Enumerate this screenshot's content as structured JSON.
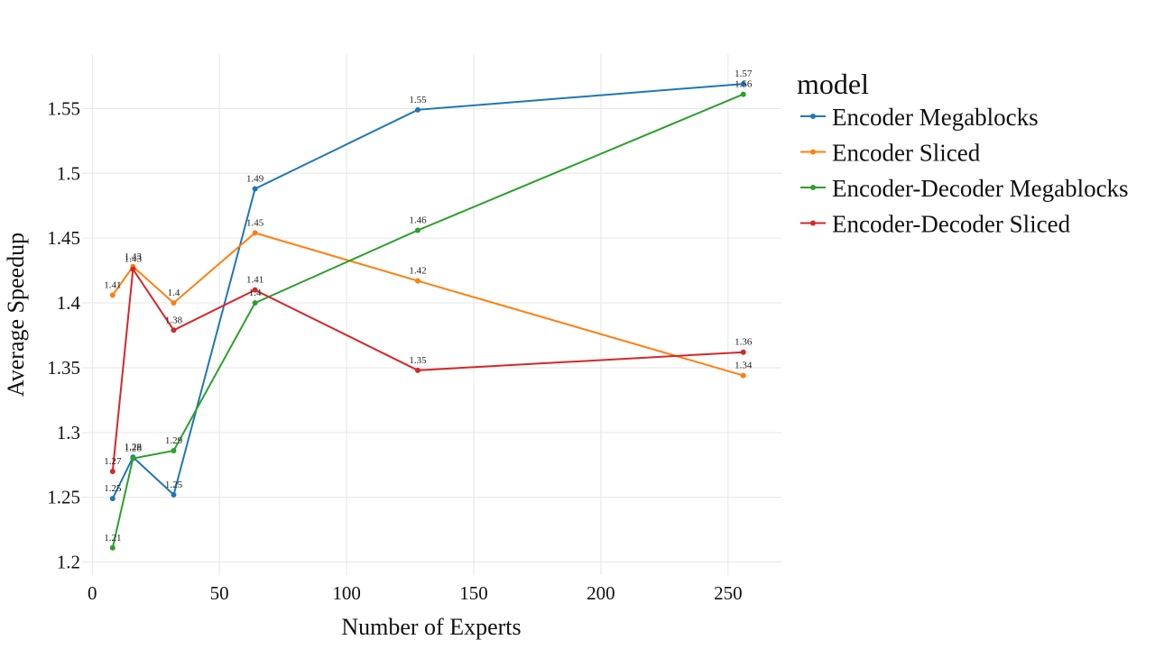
{
  "chart_data": {
    "type": "line",
    "xlabel": "Number of Experts",
    "ylabel": "Average Speedup",
    "xlim": [
      -4,
      271
    ],
    "ylim": [
      1.19,
      1.592
    ],
    "xticks": [
      0,
      50,
      100,
      150,
      200,
      250
    ],
    "yticks": [
      1.2,
      1.25,
      1.3,
      1.35,
      1.4,
      1.45,
      1.5,
      1.55
    ],
    "ytick_labels": [
      "1.2",
      "1.25",
      "1.3",
      "1.35",
      "1.4",
      "1.45",
      "1.5",
      "1.55"
    ],
    "grid": true,
    "legend": {
      "title": "model",
      "position": "right"
    },
    "x": [
      8,
      16,
      32,
      64,
      128,
      256
    ],
    "series": [
      {
        "name": "Encoder Megablocks",
        "color": "#1f77b4",
        "values": [
          1.249,
          1.281,
          1.252,
          1.488,
          1.549,
          1.569
        ],
        "labels": [
          "1.25",
          "1.28",
          "1.25",
          "1.49",
          "1.55",
          "1.57"
        ]
      },
      {
        "name": "Encoder Sliced",
        "color": "#ff7f0e",
        "values": [
          1.406,
          1.428,
          1.4,
          1.454,
          1.417,
          1.344
        ],
        "labels": [
          "1.41",
          "1.43",
          "1.4",
          "1.45",
          "1.42",
          "1.34"
        ]
      },
      {
        "name": "Encoder-Decoder Megablocks",
        "color": "#2ca02c",
        "values": [
          1.211,
          1.28,
          1.286,
          1.4,
          1.456,
          1.561
        ],
        "labels": [
          "1.21",
          "1.28",
          "1.29",
          "1.4",
          "1.46",
          "1.56"
        ]
      },
      {
        "name": "Encoder-Decoder Sliced",
        "color": "#d62728",
        "values": [
          1.27,
          1.426,
          1.379,
          1.41,
          1.348,
          1.362
        ],
        "labels": [
          "1.27",
          "1.43",
          "1.38",
          "1.41",
          "1.35",
          "1.36"
        ]
      }
    ]
  }
}
